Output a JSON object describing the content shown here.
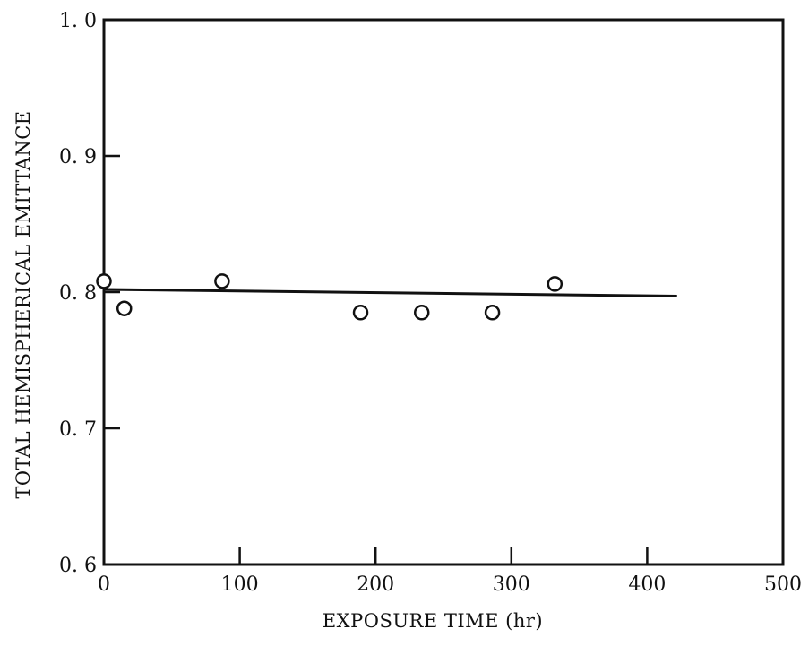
{
  "chart_data": {
    "type": "scatter",
    "title": "",
    "xlabel": "EXPOSURE TIME (hr)",
    "ylabel": "TOTAL HEMISPHERICAL EMITTANCE",
    "xlim": [
      0,
      500
    ],
    "ylim": [
      0.6,
      1.0
    ],
    "xticks": [
      0,
      100,
      200,
      300,
      400,
      500
    ],
    "xtick_labels": [
      "0",
      "100",
      "200",
      "300",
      "400",
      "500"
    ],
    "yticks": [
      0.6,
      0.7,
      0.8,
      0.9,
      1.0
    ],
    "ytick_labels": [
      "0. 6",
      "0. 7",
      "0. 8",
      "0. 9",
      "1. 0"
    ],
    "grid": false,
    "series": [
      {
        "marker": "open-circle",
        "x": [
          0,
          15,
          87,
          189,
          234,
          286,
          332
        ],
        "y": [
          0.808,
          0.788,
          0.808,
          0.785,
          0.785,
          0.785,
          0.806
        ]
      }
    ],
    "fit_line": {
      "x": [
        0,
        422
      ],
      "y": [
        0.802,
        0.797
      ]
    }
  }
}
